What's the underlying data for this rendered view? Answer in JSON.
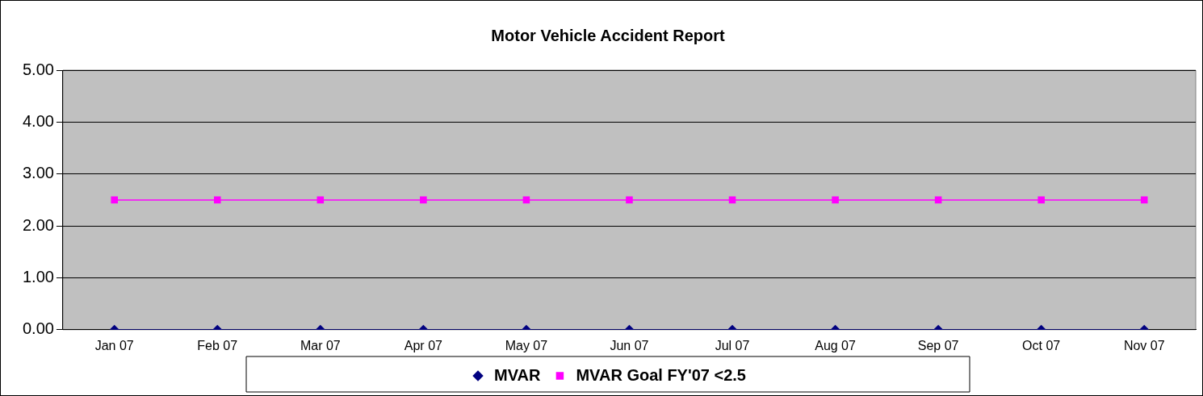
{
  "chart_data": {
    "type": "line",
    "title": "Motor Vehicle Accident Report",
    "categories": [
      "Jan 07",
      "Feb 07",
      "Mar 07",
      "Apr 07",
      "May 07",
      "Jun 07",
      "Jul 07",
      "Aug 07",
      "Sep 07",
      "Oct 07",
      "Nov 07"
    ],
    "series": [
      {
        "name": "MVAR",
        "color": "#000080",
        "marker": "diamond",
        "values": [
          0,
          0,
          0,
          0,
          0,
          0,
          0,
          0,
          0,
          0,
          0
        ]
      },
      {
        "name": "MVAR Goal FY'07 <2.5",
        "color": "#ff00ff",
        "marker": "square",
        "values": [
          2.5,
          2.5,
          2.5,
          2.5,
          2.5,
          2.5,
          2.5,
          2.5,
          2.5,
          2.5,
          2.5
        ]
      }
    ],
    "ylim": [
      0,
      5
    ],
    "yticks": [
      {
        "value": 0,
        "label": "0.00"
      },
      {
        "value": 1,
        "label": "1.00"
      },
      {
        "value": 2,
        "label": "2.00"
      },
      {
        "value": 3,
        "label": "3.00"
      },
      {
        "value": 4,
        "label": "4.00"
      },
      {
        "value": 5,
        "label": "5.00"
      }
    ],
    "grid": "y",
    "legend": "bottom",
    "line_style": "solid"
  }
}
